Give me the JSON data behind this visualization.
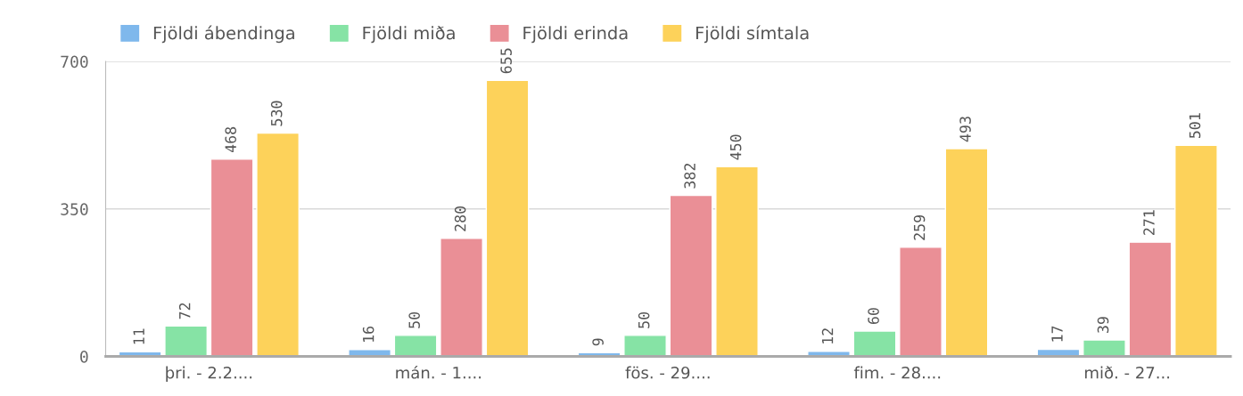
{
  "chart_data": {
    "type": "bar",
    "categories": [
      "þri. - 2.2....",
      "mán. - 1....",
      "fös. - 29....",
      "fim. - 28....",
      "mið. - 27..."
    ],
    "series": [
      {
        "name": "Fjöldi ábendinga",
        "color": "#7fb8ec",
        "values": [
          11,
          16,
          9,
          12,
          17
        ]
      },
      {
        "name": "Fjöldi miða",
        "color": "#86e3a5",
        "values": [
          72,
          50,
          50,
          60,
          39
        ]
      },
      {
        "name": "Fjöldi erinda",
        "color": "#ea8f96",
        "values": [
          468,
          280,
          382,
          259,
          271
        ]
      },
      {
        "name": "Fjöldi símtala",
        "color": "#fdd25a",
        "values": [
          530,
          655,
          450,
          493,
          501
        ]
      }
    ],
    "ylim": [
      0,
      700
    ],
    "yticks": [
      0,
      350,
      700
    ],
    "grid": "y",
    "legend": "top left",
    "data_labels": true
  }
}
